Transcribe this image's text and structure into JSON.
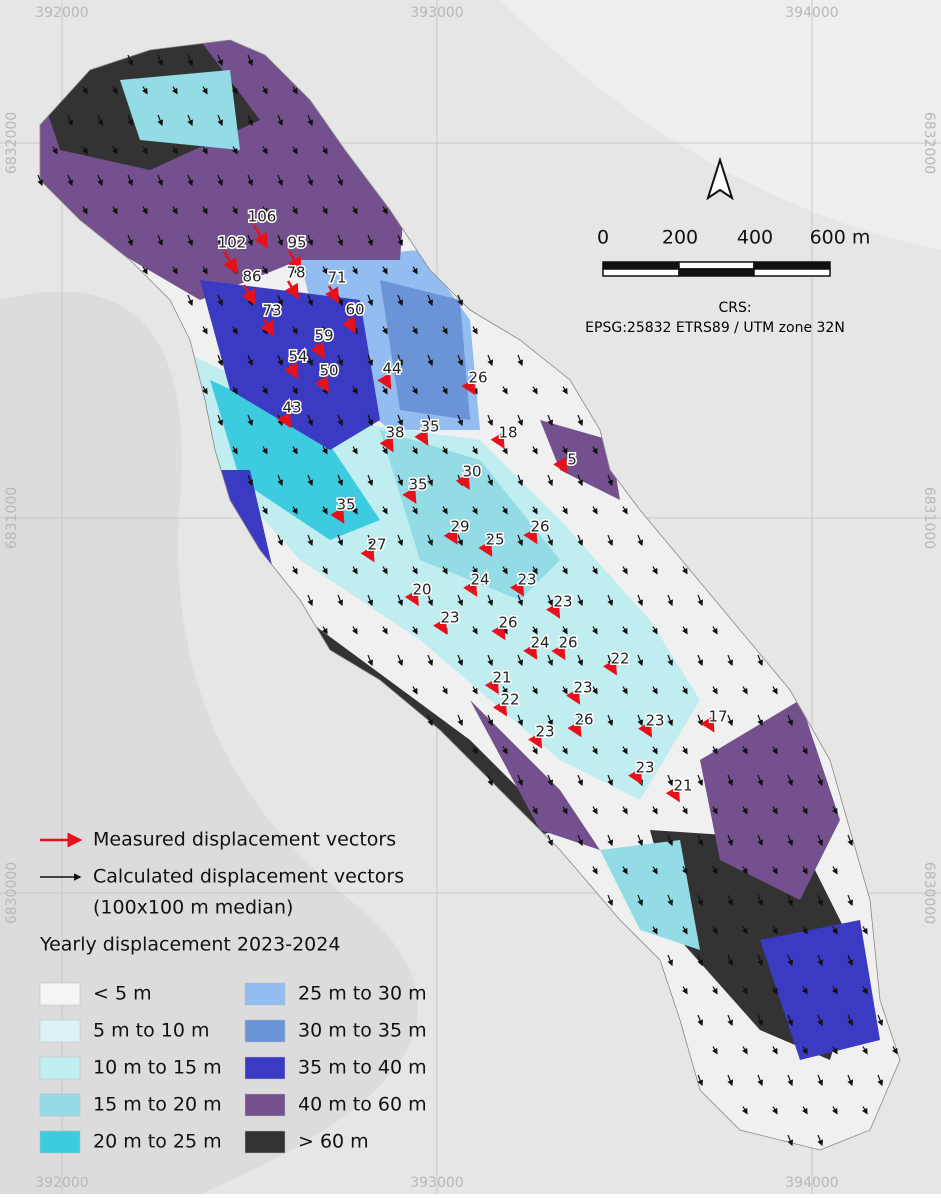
{
  "grid": {
    "x_labels": [
      "392000",
      "393000",
      "394000"
    ],
    "y_labels": [
      "6832000",
      "6831000",
      "6830000"
    ]
  },
  "scale_bar": {
    "labels": [
      "0",
      "200",
      "400",
      "600 m"
    ]
  },
  "crs": {
    "title": "CRS:",
    "text": "EPSG:25832 ETRS89 / UTM zone 32N"
  },
  "measured_vectors": {
    "values": [
      106,
      102,
      95,
      78,
      86,
      71,
      73,
      60,
      59,
      54,
      50,
      44,
      26,
      43,
      38,
      35,
      18,
      5,
      30,
      35,
      35,
      29,
      26,
      25,
      27,
      24,
      23,
      23,
      20,
      23,
      26,
      24,
      26,
      22,
      21,
      23,
      22,
      26,
      23,
      17,
      23,
      23,
      21
    ],
    "color": "#e8101a"
  },
  "legend": {
    "measured": "Measured displacement vectors",
    "calculated": "Calculated displacement vectors",
    "calculated_note": "(100x100 m median)",
    "title": "Yearly displacement 2023-2024",
    "classes": [
      {
        "label": "< 5 m",
        "color": "#f4f4f4"
      },
      {
        "label": "5 m to 10 m",
        "color": "#dcf3f6"
      },
      {
        "label": "10 m to 15 m",
        "color": "#c0eef0"
      },
      {
        "label": "15 m to 20 m",
        "color": "#93dbe5"
      },
      {
        "label": "20 m to 25 m",
        "color": "#3dcbe0"
      },
      {
        "label": "25 m to 30 m",
        "color": "#93bdf0"
      },
      {
        "label": "30 m to 35 m",
        "color": "#6a93d8"
      },
      {
        "label": "35 m to 40 m",
        "color": "#3a3ac2"
      },
      {
        "label": "40 m to 60 m",
        "color": "#74508e"
      },
      {
        "label": "> 60  m",
        "color": "#333333"
      }
    ]
  }
}
